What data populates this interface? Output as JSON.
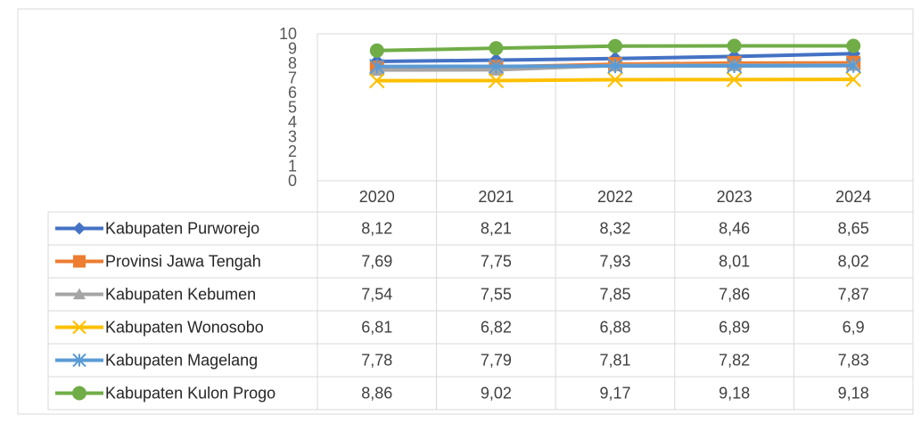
{
  "chart_data": {
    "type": "line",
    "title": "",
    "xlabel": "",
    "ylabel": "",
    "ylim": [
      0,
      10
    ],
    "y_ticks": [
      "0",
      "1",
      "2",
      "3",
      "4",
      "5",
      "6",
      "7",
      "8",
      "9",
      "10"
    ],
    "categories": [
      "2020",
      "2021",
      "2022",
      "2023",
      "2024"
    ],
    "grid": "vertical",
    "legend": "data-table",
    "series": [
      {
        "name": "Kabupaten Purworejo",
        "color": "#4472C4",
        "marker": "diamond",
        "values": [
          8.12,
          8.21,
          8.32,
          8.46,
          8.65
        ],
        "labels": [
          "8,12",
          "8,21",
          "8,32",
          "8,46",
          "8,65"
        ]
      },
      {
        "name": "Provinsi Jawa Tengah",
        "color": "#ED7D31",
        "marker": "square",
        "values": [
          7.69,
          7.75,
          7.93,
          8.01,
          8.02
        ],
        "labels": [
          "7,69",
          "7,75",
          "7,93",
          "8,01",
          "8,02"
        ]
      },
      {
        "name": "Kabupaten Kebumen",
        "color": "#A5A5A5",
        "marker": "triangle",
        "values": [
          7.54,
          7.55,
          7.85,
          7.86,
          7.87
        ],
        "labels": [
          "7,54",
          "7,55",
          "7,85",
          "7,86",
          "7,87"
        ]
      },
      {
        "name": "Kabupaten Wonosobo",
        "color": "#FFC000",
        "marker": "x",
        "values": [
          6.81,
          6.82,
          6.88,
          6.89,
          6.9
        ],
        "labels": [
          "6,81",
          "6,82",
          "6,88",
          "6,89",
          "6,9"
        ]
      },
      {
        "name": "Kabupaten Magelang",
        "color": "#5B9BD5",
        "marker": "star",
        "values": [
          7.78,
          7.79,
          7.81,
          7.82,
          7.83
        ],
        "labels": [
          "7,78",
          "7,79",
          "7,81",
          "7,82",
          "7,83"
        ]
      },
      {
        "name": "Kabupaten Kulon Progo",
        "color": "#70AD47",
        "marker": "circle",
        "values": [
          8.86,
          9.02,
          9.17,
          9.18,
          9.18
        ],
        "labels": [
          "8,86",
          "9,02",
          "9,17",
          "9,18",
          "9,18"
        ]
      }
    ]
  }
}
